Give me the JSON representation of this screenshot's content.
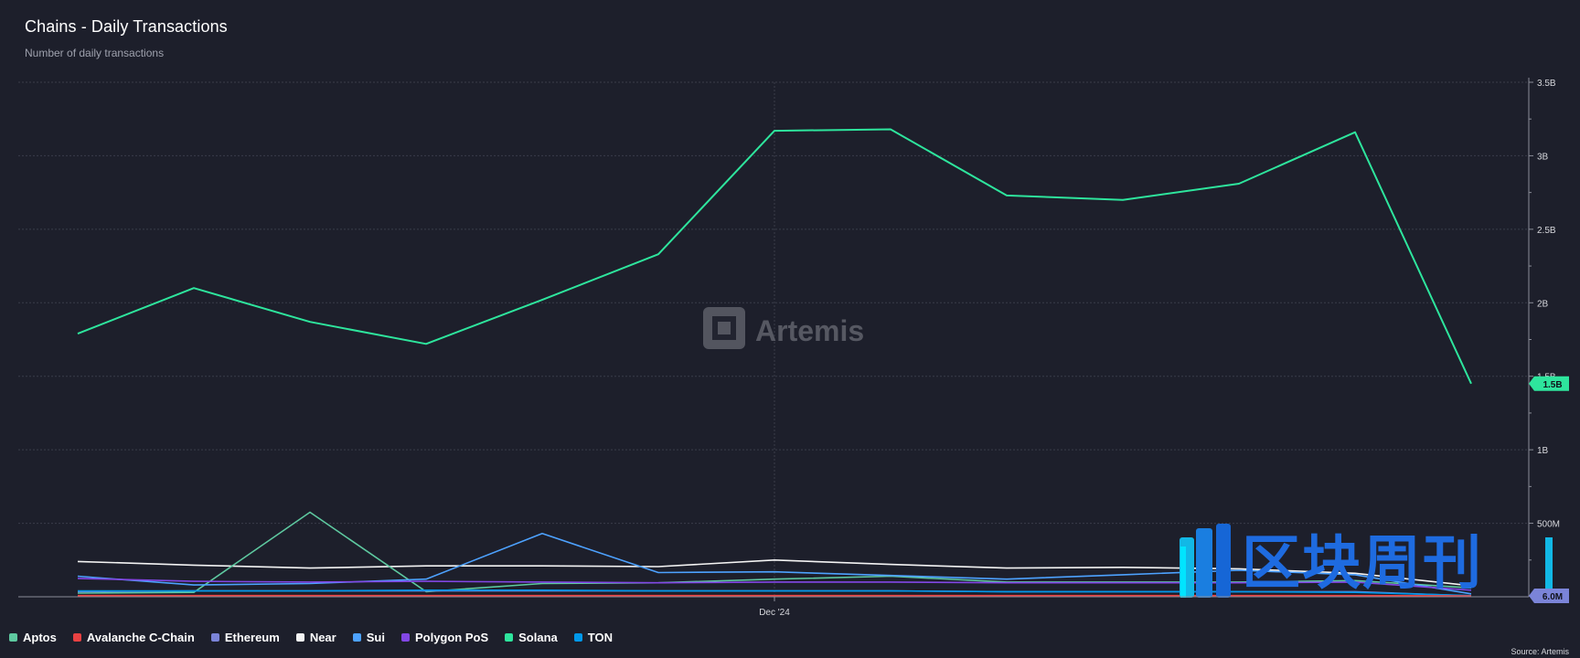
{
  "header": {
    "title": "Chains - Daily Transactions",
    "subtitle": "Number of daily transactions"
  },
  "watermark": {
    "text": "Artemis",
    "overlay_text": "区块周刊"
  },
  "source": "Source: Artemis",
  "colors": {
    "background": "#1d1f2b",
    "grid": "#3a3d4a",
    "axis_text": "#d6d7dc"
  },
  "legend": [
    {
      "label": "Aptos",
      "color": "#5ec9a0"
    },
    {
      "label": "Avalanche C-Chain",
      "color": "#e84142"
    },
    {
      "label": "Ethereum",
      "color": "#7b84d8"
    },
    {
      "label": "Near",
      "color": "#f4f4f4"
    },
    {
      "label": "Sui",
      "color": "#4da2ff"
    },
    {
      "label": "Polygon PoS",
      "color": "#8247e5"
    },
    {
      "label": "Solana",
      "color": "#2ee59d"
    },
    {
      "label": "TON",
      "color": "#0098ea"
    }
  ],
  "chart_data": {
    "type": "line",
    "title": "Chains - Daily Transactions",
    "subtitle": "Number of daily transactions",
    "y_axis_side": "right",
    "ylim": [
      0,
      3500000000
    ],
    "y_ticks": [
      {
        "value": 500000000,
        "label": "500M"
      },
      {
        "value": 1000000000,
        "label": "1B"
      },
      {
        "value": 1500000000,
        "label": "1.5B"
      },
      {
        "value": 2000000000,
        "label": "2B"
      },
      {
        "value": 2500000000,
        "label": "2.5B"
      },
      {
        "value": 3000000000,
        "label": "3B"
      },
      {
        "value": 3500000000,
        "label": "3.5B"
      }
    ],
    "x_ticks": [
      {
        "index": 6,
        "label": "Dec '24"
      }
    ],
    "x_count": 13,
    "grid": true,
    "legend_position": "bottom",
    "series": [
      {
        "name": "Near",
        "color": "#f4f4f4",
        "values": [
          240000000,
          215000000,
          195000000,
          210000000,
          210000000,
          205000000,
          250000000,
          220000000,
          195000000,
          200000000,
          190000000,
          160000000,
          75000000
        ]
      },
      {
        "name": "Aptos",
        "color": "#5ec9a0",
        "values": [
          25000000,
          30000000,
          575000000,
          35000000,
          90000000,
          95000000,
          120000000,
          140000000,
          100000000,
          100000000,
          100000000,
          110000000,
          60000000
        ]
      },
      {
        "name": "Sui",
        "color": "#4da2ff",
        "values": [
          140000000,
          80000000,
          90000000,
          120000000,
          430000000,
          165000000,
          170000000,
          145000000,
          120000000,
          150000000,
          180000000,
          150000000,
          20000000
        ]
      },
      {
        "name": "Polygon PoS",
        "color": "#8247e5",
        "values": [
          125000000,
          105000000,
          100000000,
          105000000,
          100000000,
          95000000,
          100000000,
          100000000,
          95000000,
          95000000,
          95000000,
          100000000,
          45000000
        ]
      },
      {
        "name": "Ethereum",
        "color": "#7b84d8",
        "values": [
          35000000,
          40000000,
          40000000,
          40000000,
          40000000,
          40000000,
          40000000,
          40000000,
          35000000,
          35000000,
          35000000,
          35000000,
          6000000
        ]
      },
      {
        "name": "TON",
        "color": "#0098ea",
        "values": [
          40000000,
          40000000,
          40000000,
          45000000,
          45000000,
          40000000,
          40000000,
          40000000,
          35000000,
          35000000,
          35000000,
          30000000,
          8000000
        ]
      },
      {
        "name": "Avalanche C-Chain",
        "color": "#e84142",
        "values": [
          8000000,
          8000000,
          8000000,
          8000000,
          8000000,
          8000000,
          8000000,
          8000000,
          8000000,
          8000000,
          8000000,
          8000000,
          6000000
        ]
      },
      {
        "name": "Solana",
        "color": "#2ee59d",
        "values": [
          1790000000,
          2100000000,
          1870000000,
          1720000000,
          2020000000,
          2330000000,
          3170000000,
          3180000000,
          2730000000,
          2700000000,
          2810000000,
          3160000000,
          1450000000
        ]
      }
    ],
    "end_labels": [
      {
        "series": "Solana",
        "label": "1.5B"
      },
      {
        "series": "Ethereum",
        "label": "6.0M"
      }
    ]
  }
}
